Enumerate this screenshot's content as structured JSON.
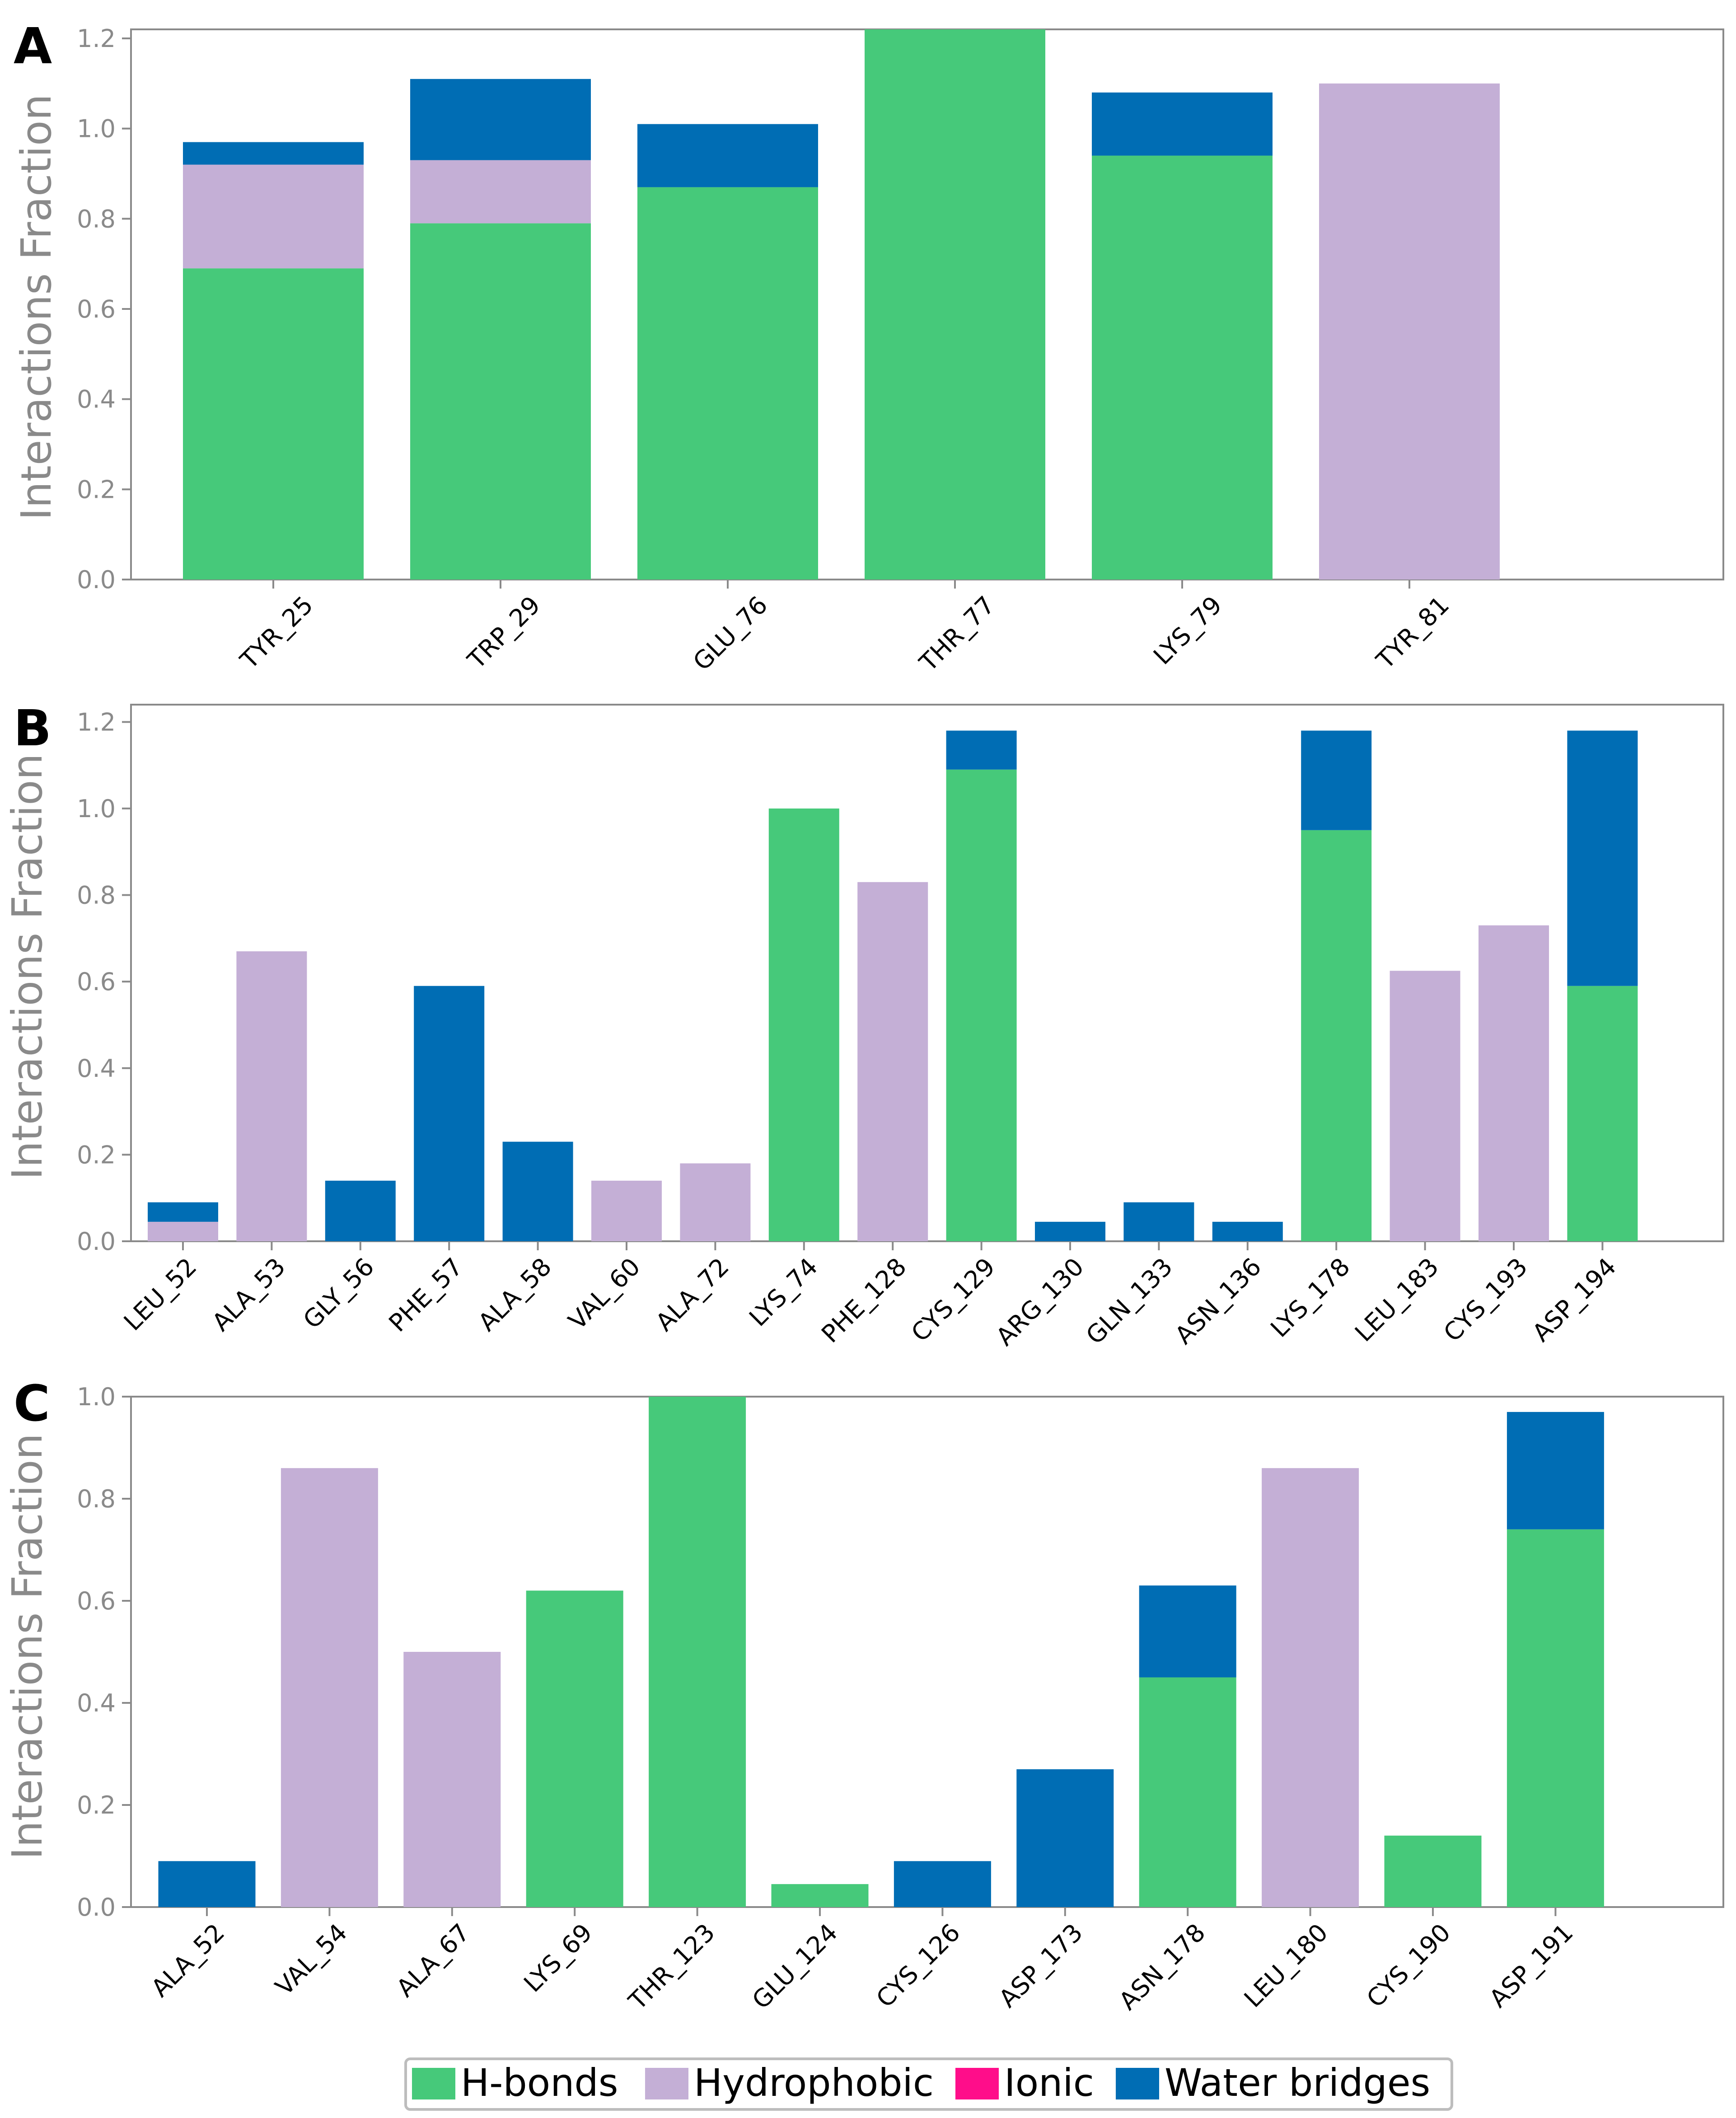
{
  "colors": {
    "H-bonds": "#46c97a",
    "Hydrophobic": "#c4afd6",
    "Ionic": "#ff0d8a",
    "Water bridges": "#006db4",
    "axis": "#8a8a8a"
  },
  "legend": {
    "items": [
      "H-bonds",
      "Hydrophobic",
      "Ionic",
      "Water bridges"
    ]
  },
  "chart_data": [
    {
      "panel": "A",
      "type": "bar",
      "stacked": true,
      "ylabel": "Interactions Fraction",
      "ylim": [
        0,
        1.22
      ],
      "yticks": [
        0.0,
        0.2,
        0.4,
        0.6,
        0.8,
        1.0,
        1.2
      ],
      "ytick_labels": [
        "0.0",
        "0.2",
        "0.4",
        "0.6",
        "0.8",
        "1.0",
        "1.2"
      ],
      "categories": [
        "TYR_25",
        "TRP_29",
        "GLU_76",
        "THR_77",
        "LYS_79",
        "TYR_81"
      ],
      "series": [
        {
          "name": "H-bonds",
          "values": [
            0.69,
            0.79,
            0.87,
            1.23,
            0.94,
            0.0
          ]
        },
        {
          "name": "Hydrophobic",
          "values": [
            0.23,
            0.14,
            0.0,
            0.0,
            0.0,
            1.1
          ]
        },
        {
          "name": "Ionic",
          "values": [
            0.0,
            0.0,
            0.0,
            0.0,
            0.0,
            0.0
          ]
        },
        {
          "name": "Water bridges",
          "values": [
            0.05,
            0.18,
            0.14,
            0.0,
            0.14,
            0.0
          ]
        }
      ]
    },
    {
      "panel": "B",
      "type": "bar",
      "stacked": true,
      "ylabel": "Interactions Fraction",
      "ylim": [
        0,
        1.24
      ],
      "yticks": [
        0.0,
        0.2,
        0.4,
        0.6,
        0.8,
        1.0,
        1.2
      ],
      "ytick_labels": [
        "0.0",
        "0.2",
        "0.4",
        "0.6",
        "0.8",
        "1.0",
        "1.2"
      ],
      "categories": [
        "LEU_52",
        "ALA_53",
        "GLY_56",
        "PHE_57",
        "ALA_58",
        "VAL_60",
        "ALA_72",
        "LYS_74",
        "PHE_128",
        "CYS_129",
        "ARG_130",
        "GLN_133",
        "ASN_136",
        "LYS_178",
        "LEU_183",
        "CYS_193",
        "ASP_194"
      ],
      "series": [
        {
          "name": "H-bonds",
          "values": [
            0.0,
            0.0,
            0.0,
            0.0,
            0.0,
            0.0,
            0.0,
            1.0,
            0.0,
            1.09,
            0.0,
            0.0,
            0.0,
            0.95,
            0.0,
            0.0,
            0.59
          ]
        },
        {
          "name": "Hydrophobic",
          "values": [
            0.045,
            0.67,
            0.0,
            0.0,
            0.0,
            0.14,
            0.18,
            0.0,
            0.83,
            0.0,
            0.0,
            0.0,
            0.0,
            0.0,
            0.625,
            0.73,
            0.0
          ]
        },
        {
          "name": "Ionic",
          "values": [
            0.0,
            0.0,
            0.0,
            0.0,
            0.0,
            0.0,
            0.0,
            0.0,
            0.0,
            0.0,
            0.0,
            0.0,
            0.0,
            0.0,
            0.0,
            0.0,
            0.0
          ]
        },
        {
          "name": "Water bridges",
          "values": [
            0.045,
            0.0,
            0.14,
            0.59,
            0.23,
            0.0,
            0.0,
            0.0,
            0.0,
            0.09,
            0.045,
            0.09,
            0.045,
            0.23,
            0.0,
            0.0,
            0.59
          ]
        }
      ]
    },
    {
      "panel": "C",
      "type": "bar",
      "stacked": true,
      "ylabel": "Interactions Fraction",
      "ylim": [
        0,
        1.0
      ],
      "yticks": [
        0.0,
        0.2,
        0.4,
        0.6,
        0.8,
        1.0
      ],
      "ytick_labels": [
        "0.0",
        "0.2",
        "0.4",
        "0.6",
        "0.8",
        "1.0"
      ],
      "categories": [
        "ALA_52",
        "VAL_54",
        "ALA_67",
        "LYS_69",
        "THR_123",
        "GLU_124",
        "CYS_126",
        "ASP_173",
        "ASN_178",
        "LEU_180",
        "CYS_190",
        "ASP_191"
      ],
      "series": [
        {
          "name": "H-bonds",
          "values": [
            0.0,
            0.0,
            0.0,
            0.62,
            1.0,
            0.045,
            0.0,
            0.0,
            0.45,
            0.0,
            0.14,
            0.74
          ]
        },
        {
          "name": "Hydrophobic",
          "values": [
            0.0,
            0.86,
            0.5,
            0.0,
            0.0,
            0.0,
            0.0,
            0.0,
            0.0,
            0.86,
            0.0,
            0.0
          ]
        },
        {
          "name": "Ionic",
          "values": [
            0.0,
            0.0,
            0.0,
            0.0,
            0.0,
            0.0,
            0.0,
            0.0,
            0.0,
            0.0,
            0.0,
            0.0
          ]
        },
        {
          "name": "Water bridges",
          "values": [
            0.09,
            0.0,
            0.0,
            0.0,
            0.0,
            0.0,
            0.09,
            0.27,
            0.18,
            0.0,
            0.0,
            0.23
          ]
        }
      ]
    }
  ]
}
